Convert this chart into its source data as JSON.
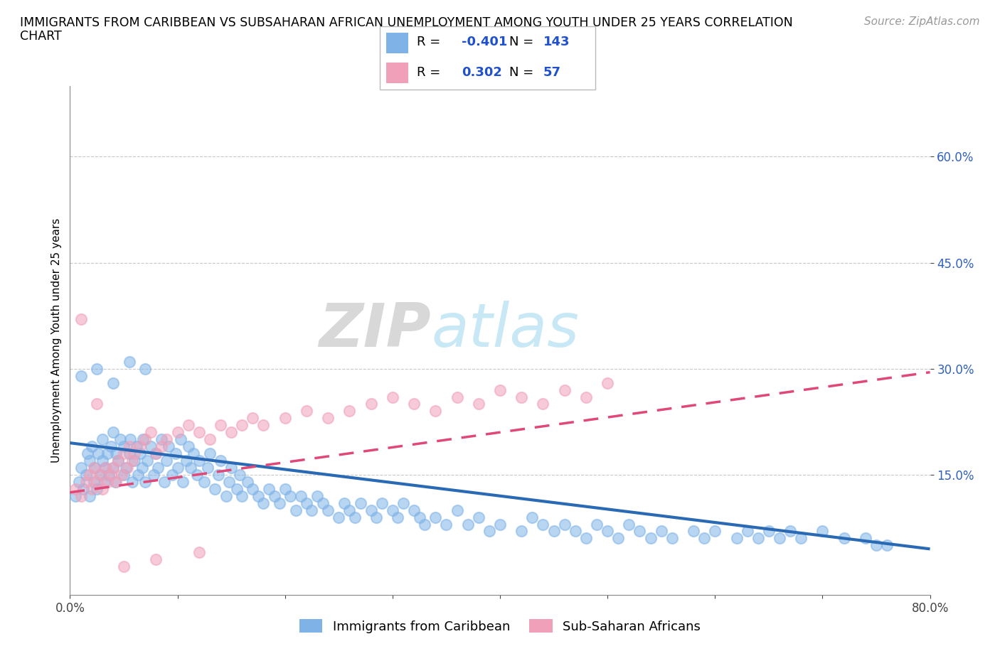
{
  "title_line1": "IMMIGRANTS FROM CARIBBEAN VS SUBSAHARAN AFRICAN UNEMPLOYMENT AMONG YOUTH UNDER 25 YEARS CORRELATION",
  "title_line2": "CHART",
  "source": "Source: ZipAtlas.com",
  "ylabel": "Unemployment Among Youth under 25 years",
  "xlim": [
    0.0,
    0.8
  ],
  "ylim": [
    -0.02,
    0.7
  ],
  "xticks": [
    0.0,
    0.1,
    0.2,
    0.3,
    0.4,
    0.5,
    0.6,
    0.7,
    0.8
  ],
  "ytick_labels": [
    "15.0%",
    "30.0%",
    "45.0%",
    "60.0%"
  ],
  "yticks": [
    0.15,
    0.3,
    0.45,
    0.6
  ],
  "grid_color": "#c8c8c8",
  "background_color": "#ffffff",
  "blue_color": "#7fb3e8",
  "pink_color": "#f0a0b8",
  "blue_label": "Immigrants from Caribbean",
  "pink_label": "Sub-Saharan Africans",
  "R_blue": -0.401,
  "N_blue": 143,
  "R_pink": 0.302,
  "N_pink": 57,
  "watermark_zip": "ZIP",
  "watermark_atlas": "atlas",
  "title_fontsize": 12.5,
  "axis_label_fontsize": 11,
  "tick_fontsize": 12,
  "legend_fontsize": 13,
  "source_fontsize": 11,
  "blue_trend_x": [
    0.0,
    0.8
  ],
  "blue_trend_y": [
    0.195,
    0.045
  ],
  "pink_trend_x": [
    0.0,
    0.8
  ],
  "pink_trend_y": [
    0.125,
    0.295
  ],
  "blue_scatter_x": [
    0.005,
    0.008,
    0.01,
    0.012,
    0.015,
    0.016,
    0.018,
    0.018,
    0.02,
    0.022,
    0.023,
    0.025,
    0.026,
    0.028,
    0.03,
    0.03,
    0.032,
    0.033,
    0.035,
    0.036,
    0.038,
    0.04,
    0.04,
    0.042,
    0.043,
    0.045,
    0.047,
    0.05,
    0.05,
    0.052,
    0.055,
    0.056,
    0.058,
    0.06,
    0.062,
    0.063,
    0.065,
    0.067,
    0.068,
    0.07,
    0.072,
    0.075,
    0.078,
    0.08,
    0.082,
    0.085,
    0.088,
    0.09,
    0.092,
    0.095,
    0.098,
    0.1,
    0.103,
    0.105,
    0.108,
    0.11,
    0.112,
    0.115,
    0.118,
    0.12,
    0.125,
    0.128,
    0.13,
    0.135,
    0.138,
    0.14,
    0.145,
    0.148,
    0.15,
    0.155,
    0.158,
    0.16,
    0.165,
    0.17,
    0.175,
    0.18,
    0.185,
    0.19,
    0.195,
    0.2,
    0.205,
    0.21,
    0.215,
    0.22,
    0.225,
    0.23,
    0.235,
    0.24,
    0.25,
    0.255,
    0.26,
    0.265,
    0.27,
    0.28,
    0.285,
    0.29,
    0.3,
    0.305,
    0.31,
    0.32,
    0.325,
    0.33,
    0.34,
    0.35,
    0.36,
    0.37,
    0.38,
    0.39,
    0.4,
    0.42,
    0.43,
    0.44,
    0.45,
    0.46,
    0.47,
    0.48,
    0.49,
    0.5,
    0.51,
    0.52,
    0.53,
    0.54,
    0.55,
    0.56,
    0.58,
    0.59,
    0.6,
    0.62,
    0.63,
    0.64,
    0.65,
    0.66,
    0.67,
    0.68,
    0.7,
    0.72,
    0.74,
    0.75,
    0.76,
    0.01,
    0.025,
    0.04,
    0.055,
    0.07
  ],
  "blue_scatter_y": [
    0.12,
    0.14,
    0.16,
    0.13,
    0.15,
    0.18,
    0.12,
    0.17,
    0.19,
    0.14,
    0.16,
    0.13,
    0.18,
    0.15,
    0.17,
    0.2,
    0.14,
    0.16,
    0.18,
    0.15,
    0.19,
    0.16,
    0.21,
    0.14,
    0.18,
    0.17,
    0.2,
    0.15,
    0.19,
    0.16,
    0.18,
    0.2,
    0.14,
    0.17,
    0.19,
    0.15,
    0.18,
    0.16,
    0.2,
    0.14,
    0.17,
    0.19,
    0.15,
    0.18,
    0.16,
    0.2,
    0.14,
    0.17,
    0.19,
    0.15,
    0.18,
    0.16,
    0.2,
    0.14,
    0.17,
    0.19,
    0.16,
    0.18,
    0.15,
    0.17,
    0.14,
    0.16,
    0.18,
    0.13,
    0.15,
    0.17,
    0.12,
    0.14,
    0.16,
    0.13,
    0.15,
    0.12,
    0.14,
    0.13,
    0.12,
    0.11,
    0.13,
    0.12,
    0.11,
    0.13,
    0.12,
    0.1,
    0.12,
    0.11,
    0.1,
    0.12,
    0.11,
    0.1,
    0.09,
    0.11,
    0.1,
    0.09,
    0.11,
    0.1,
    0.09,
    0.11,
    0.1,
    0.09,
    0.11,
    0.1,
    0.09,
    0.08,
    0.09,
    0.08,
    0.1,
    0.08,
    0.09,
    0.07,
    0.08,
    0.07,
    0.09,
    0.08,
    0.07,
    0.08,
    0.07,
    0.06,
    0.08,
    0.07,
    0.06,
    0.08,
    0.07,
    0.06,
    0.07,
    0.06,
    0.07,
    0.06,
    0.07,
    0.06,
    0.07,
    0.06,
    0.07,
    0.06,
    0.07,
    0.06,
    0.07,
    0.06,
    0.06,
    0.05,
    0.05,
    0.29,
    0.3,
    0.28,
    0.31,
    0.3
  ],
  "pink_scatter_x": [
    0.005,
    0.01,
    0.015,
    0.018,
    0.02,
    0.022,
    0.025,
    0.028,
    0.03,
    0.033,
    0.035,
    0.038,
    0.04,
    0.043,
    0.045,
    0.048,
    0.05,
    0.053,
    0.055,
    0.058,
    0.06,
    0.065,
    0.07,
    0.075,
    0.08,
    0.085,
    0.09,
    0.1,
    0.11,
    0.12,
    0.13,
    0.14,
    0.15,
    0.16,
    0.17,
    0.18,
    0.2,
    0.22,
    0.24,
    0.26,
    0.28,
    0.3,
    0.32,
    0.34,
    0.36,
    0.38,
    0.4,
    0.42,
    0.44,
    0.46,
    0.48,
    0.5,
    0.01,
    0.025,
    0.05,
    0.08,
    0.12
  ],
  "pink_scatter_y": [
    0.13,
    0.12,
    0.14,
    0.15,
    0.13,
    0.16,
    0.14,
    0.15,
    0.13,
    0.16,
    0.14,
    0.15,
    0.16,
    0.14,
    0.17,
    0.15,
    0.18,
    0.16,
    0.19,
    0.17,
    0.18,
    0.19,
    0.2,
    0.21,
    0.18,
    0.19,
    0.2,
    0.21,
    0.22,
    0.21,
    0.2,
    0.22,
    0.21,
    0.22,
    0.23,
    0.22,
    0.23,
    0.24,
    0.23,
    0.24,
    0.25,
    0.26,
    0.25,
    0.24,
    0.26,
    0.25,
    0.27,
    0.26,
    0.25,
    0.27,
    0.26,
    0.28,
    0.37,
    0.25,
    0.02,
    0.03,
    0.04
  ]
}
